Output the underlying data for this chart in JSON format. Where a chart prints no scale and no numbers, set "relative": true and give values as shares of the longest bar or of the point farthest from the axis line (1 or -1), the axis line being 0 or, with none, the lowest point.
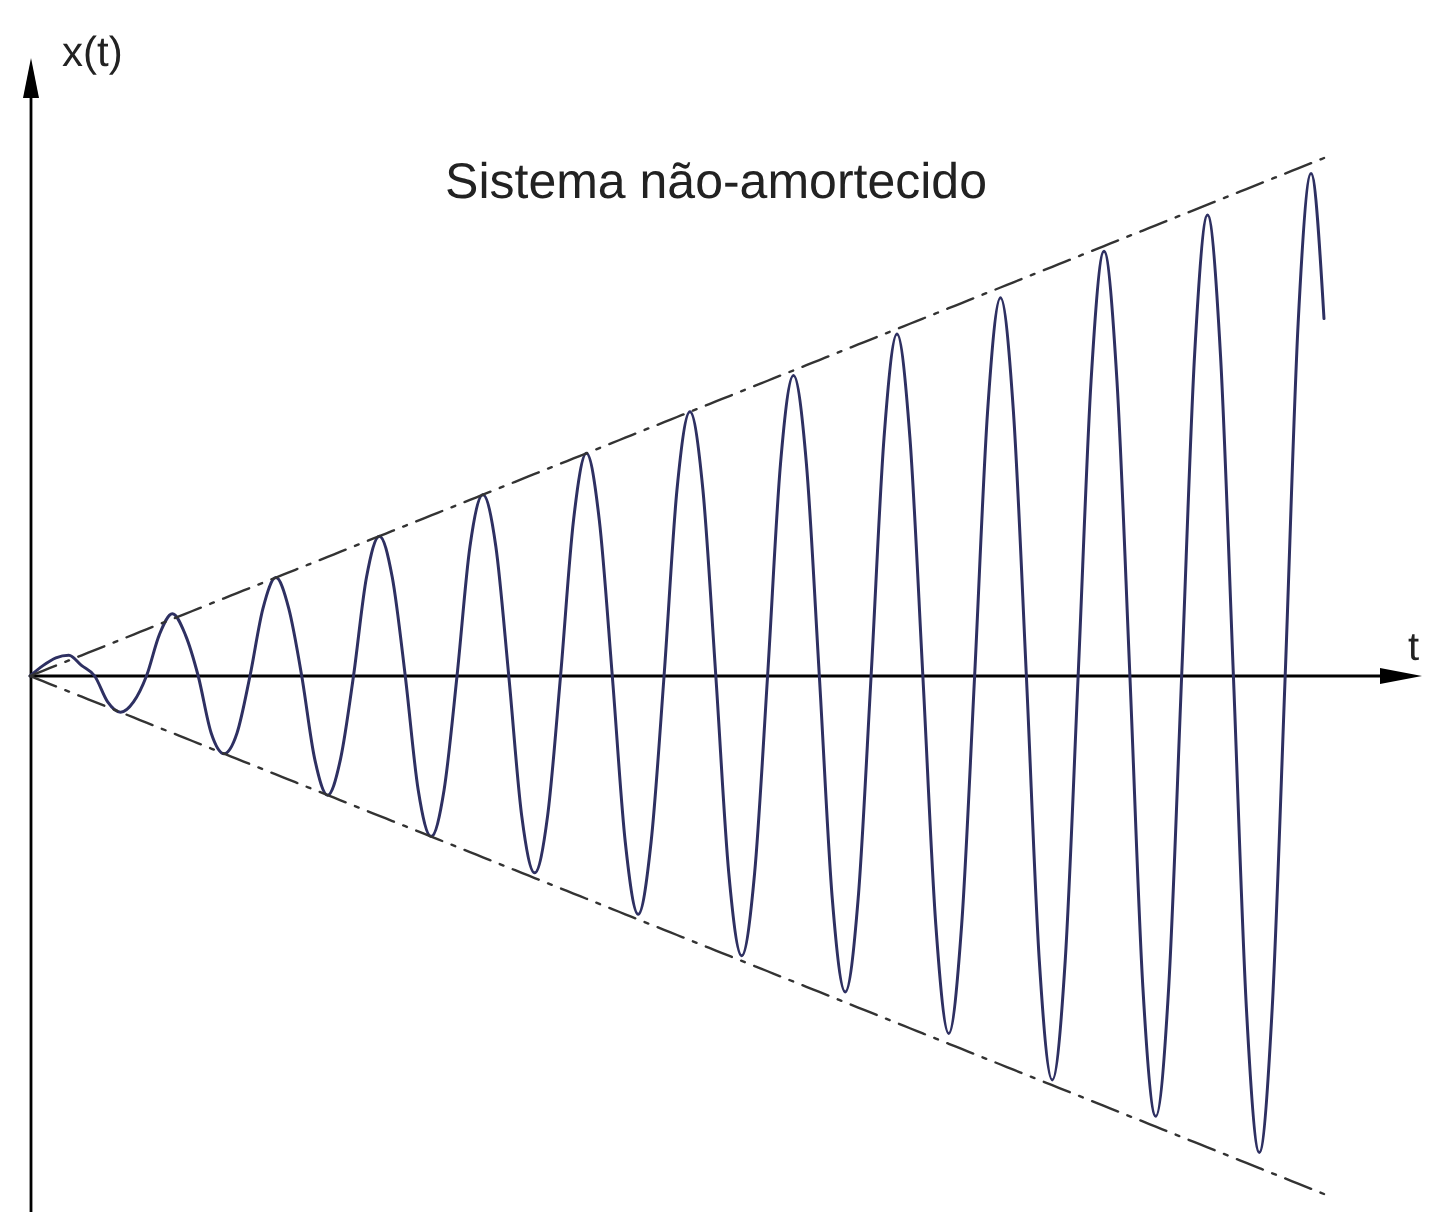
{
  "chart_data": {
    "type": "line",
    "title": "Sistema não-amortecido",
    "xlabel": "t",
    "ylabel": "x(t)",
    "relative": true,
    "categories": [
      null,
      null,
      null,
      null,
      null,
      null,
      null,
      null,
      null,
      null,
      null,
      null,
      null,
      null,
      null,
      null,
      null,
      null,
      null,
      null,
      null,
      null,
      null,
      null,
      null,
      null,
      null,
      null,
      null,
      null,
      null,
      null,
      null,
      null,
      null,
      null,
      null,
      null,
      null,
      null,
      null,
      null,
      null,
      null,
      null,
      null,
      null,
      null,
      null,
      null,
      null,
      null,
      null,
      null,
      null,
      null,
      null,
      null,
      null,
      null,
      null,
      null,
      null,
      null,
      null,
      null,
      null,
      null,
      null,
      null,
      null,
      null,
      null,
      null,
      null,
      null,
      null,
      null,
      null,
      null,
      null,
      null,
      null,
      null,
      null,
      null,
      null,
      null,
      null,
      null,
      null,
      null,
      null,
      null,
      null,
      null,
      null,
      null,
      null,
      null,
      null
    ],
    "series": [
      {
        "color": "#2e3062",
        "values": [
          0,
          0.02,
          0.035,
          0.04,
          0.02,
          0,
          -0.05,
          -0.07,
          -0.05,
          0,
          0.08,
          0.12,
          0.08,
          0,
          -0.11,
          -0.15,
          -0.11,
          0,
          0.13,
          0.19,
          0.13,
          0,
          -0.16,
          -0.23,
          -0.16,
          0,
          0.19,
          0.27,
          0.19,
          0,
          -0.22,
          -0.31,
          -0.22,
          0,
          0.25,
          0.35,
          0.25,
          0,
          -0.27,
          -0.38,
          -0.27,
          0,
          0.3,
          0.43,
          0.3,
          0,
          -0.32,
          -0.46,
          -0.32,
          0,
          0.36,
          0.51,
          0.36,
          0,
          -0.38,
          -0.54,
          -0.38,
          0,
          0.41,
          0.58,
          0.41,
          0,
          -0.43,
          -0.61,
          -0.43,
          0,
          0.46,
          0.66,
          0.46,
          0,
          -0.48,
          -0.69,
          -0.48,
          0,
          0.51,
          0.73,
          0.51,
          0,
          -0.55,
          -0.78,
          -0.55,
          0,
          0.57,
          0.82,
          0.57,
          0,
          -0.6,
          -0.85,
          -0.6,
          0,
          0.62,
          0.89,
          0.62,
          0,
          -0.64,
          -0.92,
          -0.64,
          0,
          0.68,
          0.97,
          0.69
        ]
      },
      {
        "color": "#333333",
        "line_style": "dashed",
        "values": [
          0,
          0.01,
          0.02,
          0.03,
          0.04,
          0.05,
          0.06,
          0.07,
          0.08,
          0.09,
          0.1,
          0.11,
          0.12,
          0.13,
          0.14,
          0.15,
          0.16,
          0.17,
          0.18,
          0.19,
          0.2,
          0.21,
          0.22,
          0.23,
          0.24,
          0.25,
          0.26,
          0.27,
          0.28,
          0.29,
          0.3,
          0.31,
          0.32,
          0.33,
          0.34,
          0.35,
          0.36,
          0.37,
          0.38,
          0.39,
          0.4,
          0.41,
          0.42,
          0.43,
          0.44,
          0.45,
          0.46,
          0.47,
          0.48,
          0.49,
          0.5,
          0.51,
          0.52,
          0.53,
          0.54,
          0.55,
          0.56,
          0.57,
          0.58,
          0.59,
          0.6,
          0.61,
          0.62,
          0.63,
          0.64,
          0.65,
          0.66,
          0.67,
          0.68,
          0.69,
          0.7,
          0.71,
          0.72,
          0.73,
          0.74,
          0.75,
          0.76,
          0.77,
          0.78,
          0.79,
          0.8,
          0.81,
          0.82,
          0.83,
          0.84,
          0.85,
          0.86,
          0.87,
          0.88,
          0.89,
          0.9,
          0.91,
          0.92,
          0.93,
          0.94,
          0.95,
          0.96,
          0.97,
          0.98,
          0.99,
          1
        ]
      },
      {
        "color": "#333333",
        "line_style": "dashed",
        "values": [
          0,
          -0.01,
          -0.02,
          -0.03,
          -0.04,
          -0.05,
          -0.06,
          -0.07,
          -0.08,
          -0.09,
          -0.1,
          -0.11,
          -0.12,
          -0.13,
          -0.14,
          -0.15,
          -0.16,
          -0.17,
          -0.18,
          -0.19,
          -0.2,
          -0.21,
          -0.22,
          -0.23,
          -0.24,
          -0.25,
          -0.26,
          -0.27,
          -0.28,
          -0.29,
          -0.3,
          -0.31,
          -0.32,
          -0.33,
          -0.34,
          -0.35,
          -0.36,
          -0.37,
          -0.38,
          -0.39,
          -0.4,
          -0.41,
          -0.42,
          -0.43,
          -0.44,
          -0.45,
          -0.46,
          -0.47,
          -0.48,
          -0.49,
          -0.5,
          -0.51,
          -0.52,
          -0.53,
          -0.54,
          -0.55,
          -0.56,
          -0.57,
          -0.58,
          -0.59,
          -0.6,
          -0.61,
          -0.62,
          -0.63,
          -0.64,
          -0.65,
          -0.66,
          -0.67,
          -0.68,
          -0.69,
          -0.7,
          -0.71,
          -0.72,
          -0.73,
          -0.74,
          -0.75,
          -0.76,
          -0.77,
          -0.78,
          -0.79,
          -0.8,
          -0.81,
          -0.82,
          -0.83,
          -0.84,
          -0.85,
          -0.86,
          -0.87,
          -0.88,
          -0.89,
          -0.9,
          -0.91,
          -0.92,
          -0.93,
          -0.94,
          -0.95,
          -0.96,
          -0.97,
          -0.98,
          -0.99,
          -1
        ]
      }
    ]
  }
}
